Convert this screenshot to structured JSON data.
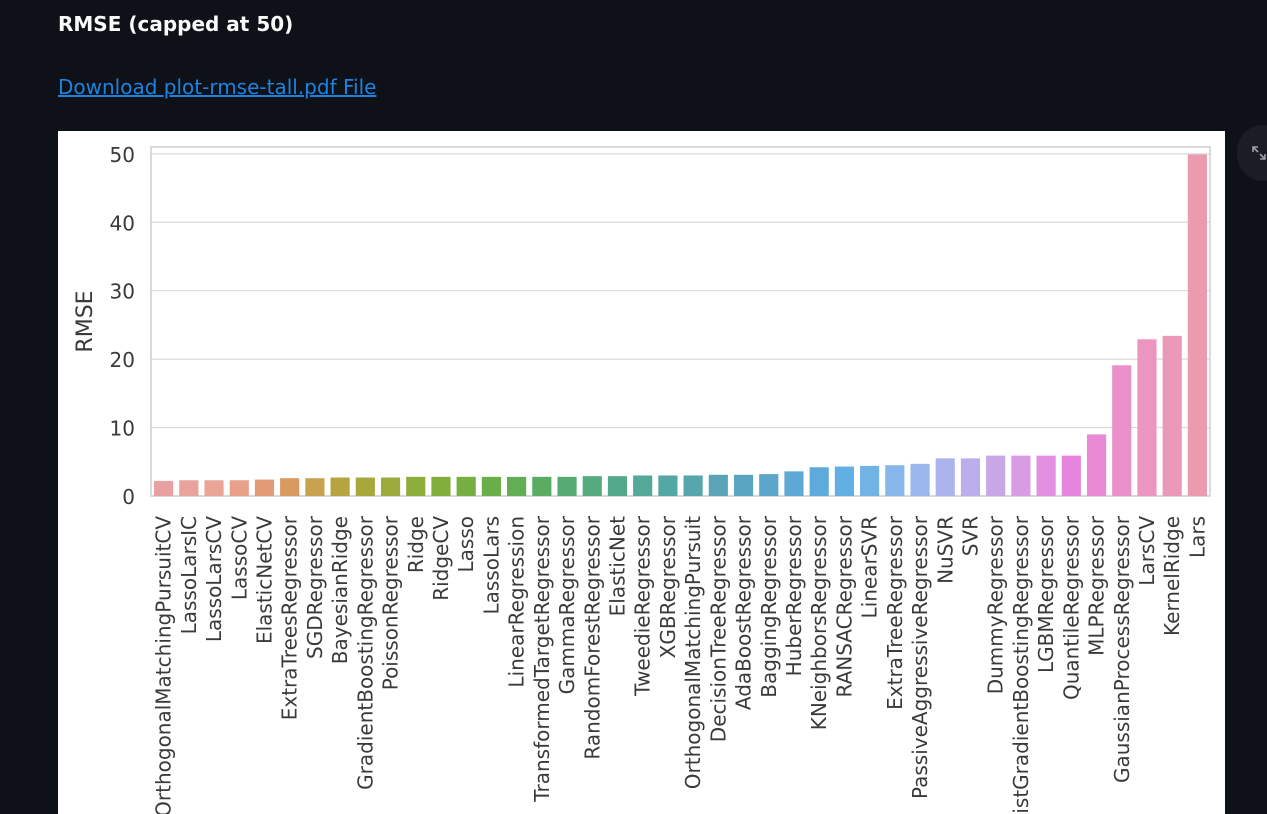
{
  "page": {
    "heading": "RMSE (capped at 50)",
    "download_link": "Download plot-rmse-tall.pdf File",
    "fullscreen_icon": "expand-icon",
    "link_color": "#1c83e1",
    "background_color": "#0e1117"
  },
  "chart_data": {
    "type": "bar",
    "title": "",
    "xlabel": "",
    "ylabel": "RMSE",
    "ylim": [
      0,
      51
    ],
    "yticks": [
      0,
      10,
      20,
      30,
      40,
      50
    ],
    "grid": true,
    "categories": [
      "OrthogonalMatchingPursuitCV",
      "LassoLarsIC",
      "LassoLarsCV",
      "LassoCV",
      "ElasticNetCV",
      "ExtraTreesRegressor",
      "SGDRegressor",
      "BayesianRidge",
      "GradientBoostingRegressor",
      "PoissonRegressor",
      "Ridge",
      "RidgeCV",
      "Lasso",
      "LassoLars",
      "LinearRegression",
      "TransformedTargetRegressor",
      "GammaRegressor",
      "RandomForestRegressor",
      "ElasticNet",
      "TweedieRegressor",
      "XGBRegressor",
      "OrthogonalMatchingPursuit",
      "DecisionTreeRegressor",
      "AdaBoostRegressor",
      "BaggingRegressor",
      "HuberRegressor",
      "KNeighborsRegressor",
      "RANSACRegressor",
      "LinearSVR",
      "ExtraTreeRegressor",
      "PassiveAggressiveRegressor",
      "NuSVR",
      "SVR",
      "DummyRegressor",
      "HistGradientBoostingRegressor",
      "LGBMRegressor",
      "QuantileRegressor",
      "MLPRegressor",
      "GaussianProcessRegressor",
      "LarsCV",
      "KernelRidge",
      "Lars"
    ],
    "values": [
      2.2,
      2.3,
      2.3,
      2.3,
      2.4,
      2.6,
      2.6,
      2.7,
      2.7,
      2.7,
      2.8,
      2.8,
      2.8,
      2.8,
      2.8,
      2.8,
      2.8,
      2.9,
      2.9,
      3.0,
      3.0,
      3.0,
      3.1,
      3.1,
      3.2,
      3.6,
      4.2,
      4.3,
      4.4,
      4.5,
      4.7,
      5.5,
      5.5,
      5.9,
      5.9,
      5.9,
      5.9,
      9.0,
      19.1,
      22.9,
      23.4,
      49.9
    ],
    "colors": [
      "#e9a0a0",
      "#e9a29c",
      "#e9a596",
      "#e8a08b",
      "#e39b77",
      "#d99a5d",
      "#c9a24f",
      "#b5a43f",
      "#a6a83c",
      "#9aab3b",
      "#8fad3a",
      "#82ae3c",
      "#76ae42",
      "#6aae4a",
      "#62ad55",
      "#5bac63",
      "#57ab72",
      "#55aa80",
      "#54a98c",
      "#54a898",
      "#55a7a3",
      "#57a6ad",
      "#59a5b7",
      "#5aa5c1",
      "#5ca6cb",
      "#5da8d4",
      "#5eaadb",
      "#63aee2",
      "#72b3e6",
      "#86b6ea",
      "#9ab6ec",
      "#acb3ec",
      "#bcaeea",
      "#c9a6e6",
      "#d99be4",
      "#e290e2",
      "#e785de",
      "#e989d4",
      "#eb8fc9",
      "#ec95c0",
      "#ec98b8",
      "#eb9bb0"
    ]
  }
}
